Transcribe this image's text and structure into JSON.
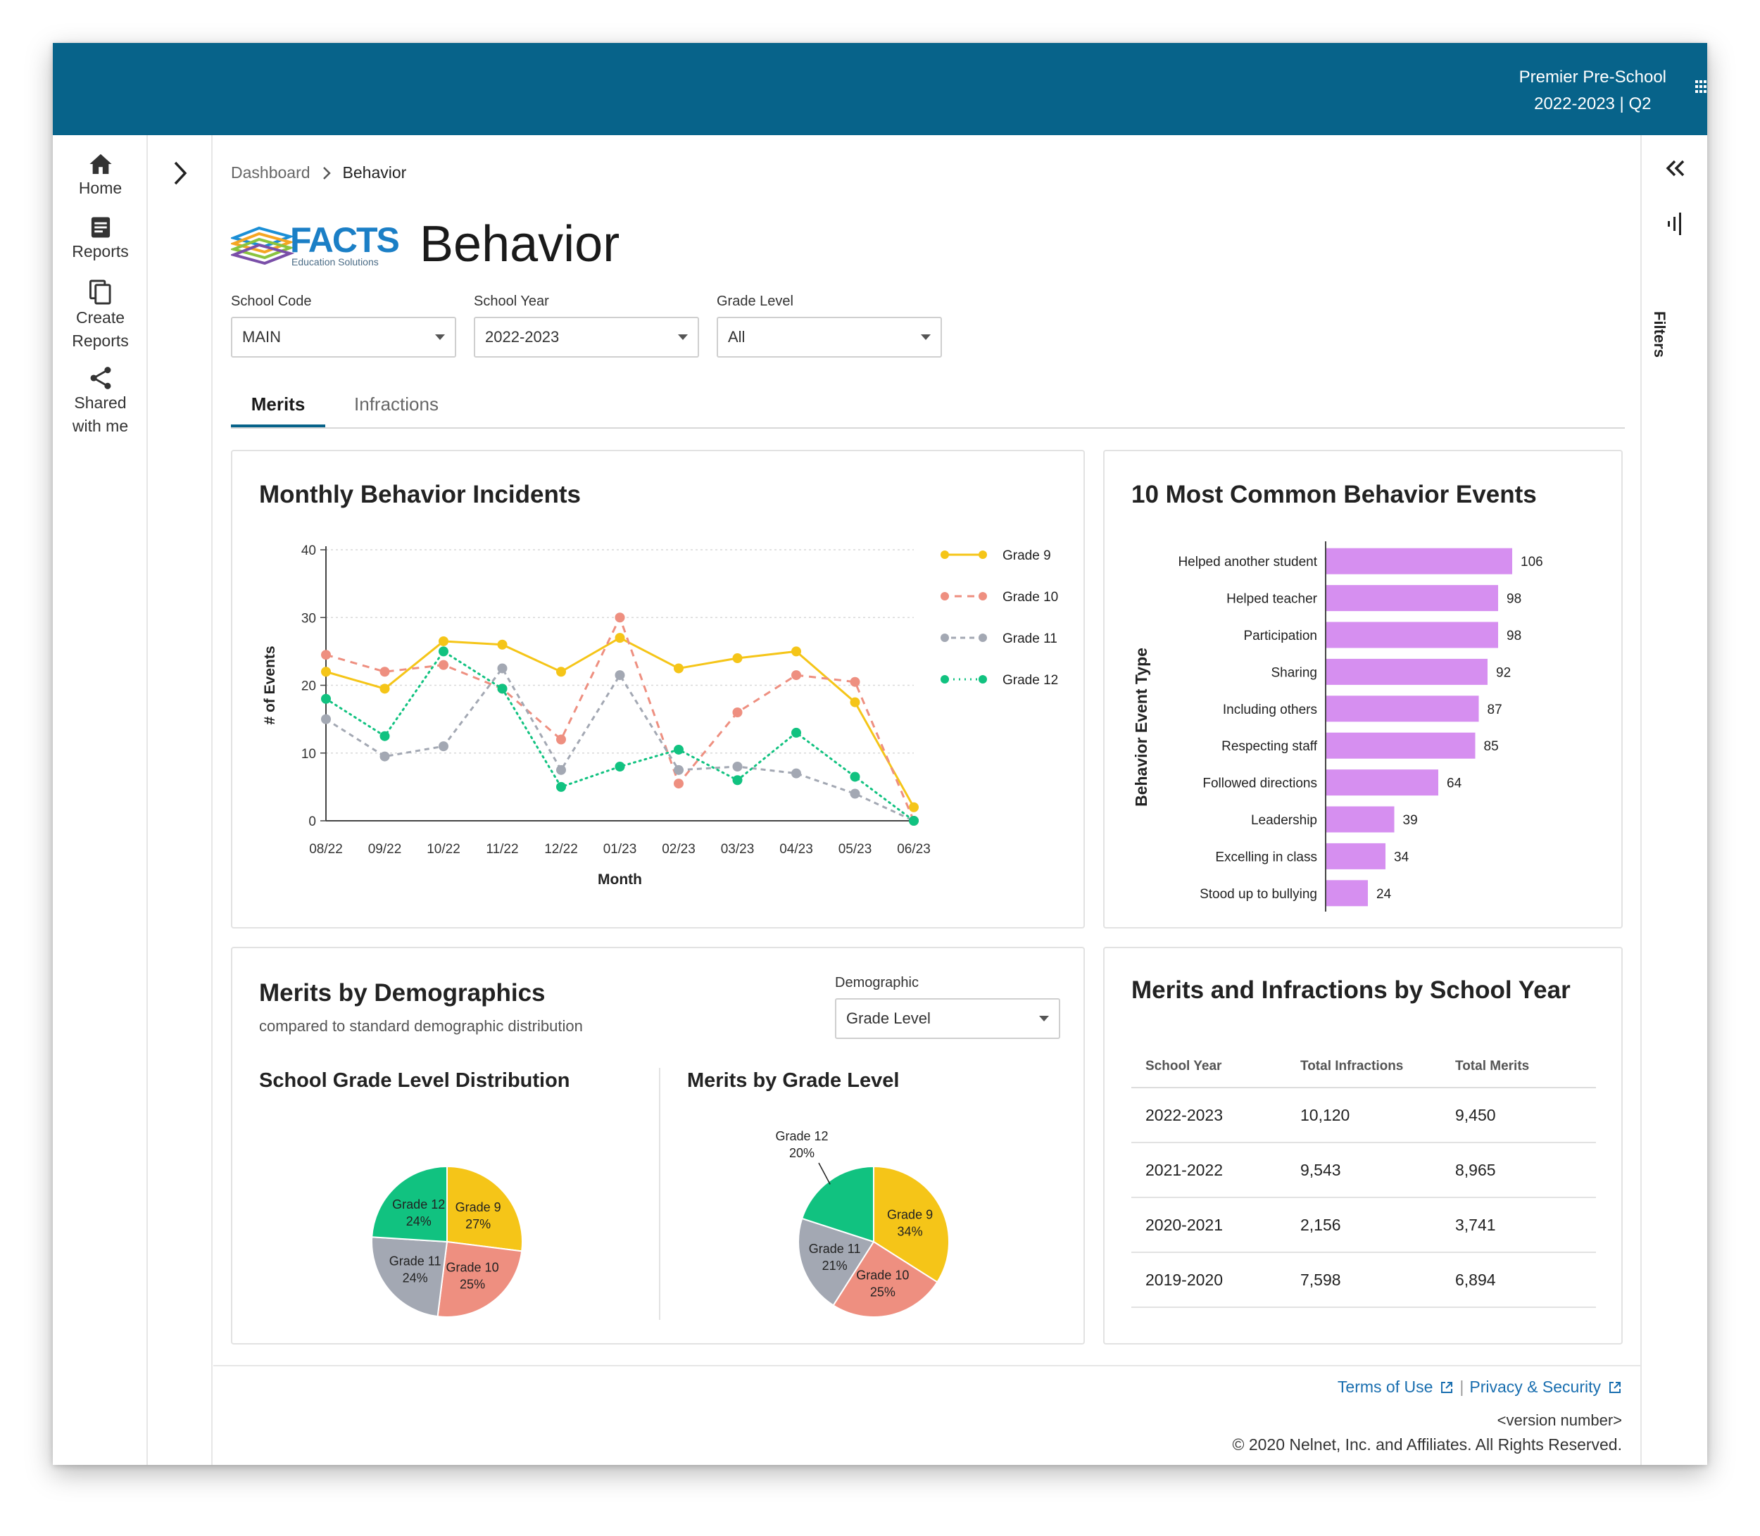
{
  "topbar": {
    "school_name": "Premier Pre-School",
    "term": "2022-2023 | Q2"
  },
  "nav": {
    "items": [
      {
        "label": "Home",
        "icon": "home-icon"
      },
      {
        "label": "Reports",
        "icon": "reports-icon"
      },
      {
        "label": "Create Reports",
        "icon": "copy-icon"
      },
      {
        "label": "Shared with me",
        "icon": "share-icon"
      }
    ]
  },
  "breadcrumb": {
    "root": "Dashboard",
    "current": "Behavior"
  },
  "logo": {
    "brand": "FACTS",
    "tagline": "Education Solutions"
  },
  "page": {
    "title": "Behavior"
  },
  "filters": {
    "school_code": {
      "label": "School Code",
      "value": "MAIN"
    },
    "school_year": {
      "label": "School Year",
      "value": "2022-2023"
    },
    "grade_level": {
      "label": "Grade Level",
      "value": "All"
    }
  },
  "tabs": {
    "merits": "Merits",
    "infractions": "Infractions"
  },
  "rightrail": {
    "filters_label": "Filters"
  },
  "colors": {
    "brand": "#07638a",
    "grade9": "#f5c518",
    "grade10": "#ee8f80",
    "grade11": "#a3a8b3",
    "grade12": "#11c280",
    "bars": "#d68ff0",
    "link": "#1a6fb0"
  },
  "monthly_chart": {
    "title": "Monthly Behavior Incidents",
    "chart_data": {
      "type": "line",
      "title": "Monthly Behavior Incidents",
      "xlabel": "Month",
      "ylabel": "# of Events",
      "ylim": [
        0,
        40
      ],
      "yticks": [
        0,
        10,
        20,
        30,
        40
      ],
      "categories": [
        "08/22",
        "09/22",
        "10/22",
        "11/22",
        "12/22",
        "01/23",
        "02/23",
        "03/23",
        "04/23",
        "05/23",
        "06/23"
      ],
      "series": [
        {
          "name": "Grade 9",
          "color": "#f5c518",
          "dash": "none",
          "values": [
            22,
            19.5,
            26.5,
            26,
            22,
            27,
            22.5,
            24,
            25,
            17.5,
            2
          ]
        },
        {
          "name": "Grade 10",
          "color": "#ee8f80",
          "dash": "long",
          "values": [
            24.5,
            22,
            23,
            19.5,
            12,
            30,
            5.5,
            16,
            21.5,
            20.5,
            0
          ]
        },
        {
          "name": "Grade 11",
          "color": "#a3a8b3",
          "dash": "short",
          "values": [
            15,
            9.5,
            11,
            22.5,
            7.5,
            21.5,
            7.5,
            8,
            7,
            4,
            0
          ]
        },
        {
          "name": "Grade 12",
          "color": "#11c280",
          "dash": "dot",
          "values": [
            18,
            12.5,
            25,
            19.5,
            5,
            8,
            10.5,
            6,
            13,
            6.5,
            0
          ]
        }
      ]
    }
  },
  "events_chart": {
    "title": "10 Most Common Behavior Events",
    "chart_data": {
      "type": "bar",
      "orientation": "horizontal",
      "title": "10 Most Common Behavior Events",
      "ylabel": "Behavior Event Type",
      "categories": [
        "Helped another student",
        "Helped teacher",
        "Participation",
        "Sharing",
        "Including others",
        "Respecting staff",
        "Followed directions",
        "Leadership",
        "Excelling in class",
        "Stood up to bullying"
      ],
      "values": [
        106,
        98,
        98,
        92,
        87,
        85,
        64,
        39,
        34,
        24
      ],
      "xlim": [
        0,
        130
      ]
    }
  },
  "demographics": {
    "title": "Merits by Demographics",
    "subtitle": "compared to standard demographic distribution",
    "selector_label": "Demographic",
    "selector_value": "Grade Level",
    "chart_data": [
      {
        "type": "pie",
        "title": "School Grade Level Distribution",
        "slices": [
          {
            "label": "Grade 9",
            "pct_label": "27%",
            "value": 27,
            "color": "#f5c518"
          },
          {
            "label": "Grade 10",
            "pct_label": "25%",
            "value": 25,
            "color": "#ee8f80"
          },
          {
            "label": "Grade 11",
            "pct_label": "24%",
            "value": 24,
            "color": "#a3a8b3"
          },
          {
            "label": "Grade 12",
            "pct_label": "24%",
            "value": 24,
            "color": "#11c280"
          }
        ]
      },
      {
        "type": "pie",
        "title": "Merits by Grade Level",
        "slices": [
          {
            "label": "Grade 9",
            "pct_label": "34%",
            "value": 34,
            "color": "#f5c518"
          },
          {
            "label": "Grade 10",
            "pct_label": "25%",
            "value": 25,
            "color": "#ee8f80"
          },
          {
            "label": "Grade 11",
            "pct_label": "21%",
            "value": 21,
            "color": "#a3a8b3"
          },
          {
            "label": "Grade 12",
            "pct_label": "20%",
            "value": 20,
            "color": "#11c280"
          }
        ]
      }
    ]
  },
  "year_table": {
    "title": "Merits and Infractions by School Year",
    "columns": [
      "School Year",
      "Total Infractions",
      "Total Merits"
    ],
    "rows": [
      [
        "2022-2023",
        "10,120",
        "9,450"
      ],
      [
        "2021-2022",
        "9,543",
        "8,965"
      ],
      [
        "2020-2021",
        "2,156",
        "3,741"
      ],
      [
        "2019-2020",
        "7,598",
        "6,894"
      ]
    ]
  },
  "footer": {
    "terms": "Terms of Use",
    "separator": "|",
    "privacy": "Privacy & Security",
    "version": "<version number>",
    "copyright": "© 2020 Nelnet, Inc. and Affiliates. All Rights Reserved."
  }
}
